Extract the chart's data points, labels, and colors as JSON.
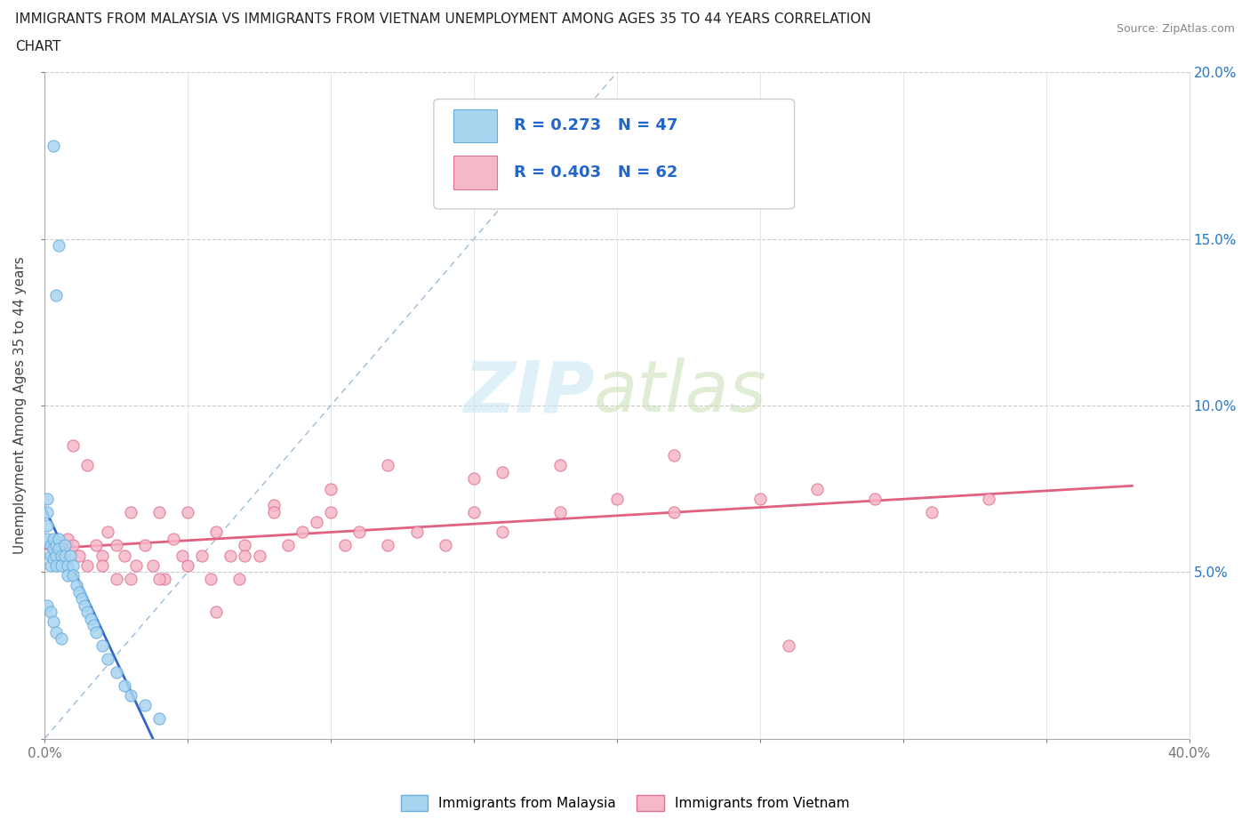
{
  "title_line1": "IMMIGRANTS FROM MALAYSIA VS IMMIGRANTS FROM VIETNAM UNEMPLOYMENT AMONG AGES 35 TO 44 YEARS CORRELATION",
  "title_line2": "CHART",
  "source": "Source: ZipAtlas.com",
  "ylabel": "Unemployment Among Ages 35 to 44 years",
  "x_min": 0.0,
  "x_max": 0.4,
  "y_min": 0.0,
  "y_max": 0.2,
  "malaysia_color": "#a8d4f0",
  "malaysia_edge": "#6aaee0",
  "vietnam_color": "#f5b8c8",
  "vietnam_edge": "#e07090",
  "malaysia_line_color": "#3366cc",
  "vietnam_line_color": "#e06080",
  "diag_color": "#99bbdd",
  "malaysia_R": 0.273,
  "malaysia_N": 47,
  "vietnam_R": 0.403,
  "vietnam_N": 62,
  "legend_label_malaysia": "Immigrants from Malaysia",
  "legend_label_vietnam": "Immigrants from Vietnam",
  "malaysia_x": [
    0.003,
    0.005,
    0.004,
    0.001,
    0.001,
    0.001,
    0.001,
    0.002,
    0.002,
    0.002,
    0.003,
    0.003,
    0.003,
    0.004,
    0.004,
    0.004,
    0.005,
    0.005,
    0.006,
    0.006,
    0.007,
    0.007,
    0.008,
    0.008,
    0.009,
    0.01,
    0.01,
    0.011,
    0.012,
    0.013,
    0.014,
    0.015,
    0.016,
    0.017,
    0.018,
    0.02,
    0.022,
    0.025,
    0.028,
    0.03,
    0.035,
    0.04,
    0.001,
    0.002,
    0.003,
    0.004,
    0.006
  ],
  "malaysia_y": [
    0.178,
    0.148,
    0.133,
    0.072,
    0.068,
    0.064,
    0.06,
    0.058,
    0.055,
    0.052,
    0.06,
    0.057,
    0.054,
    0.058,
    0.055,
    0.052,
    0.06,
    0.057,
    0.055,
    0.052,
    0.058,
    0.055,
    0.052,
    0.049,
    0.055,
    0.052,
    0.049,
    0.046,
    0.044,
    0.042,
    0.04,
    0.038,
    0.036,
    0.034,
    0.032,
    0.028,
    0.024,
    0.02,
    0.016,
    0.013,
    0.01,
    0.006,
    0.04,
    0.038,
    0.035,
    0.032,
    0.03
  ],
  "vietnam_x": [
    0.008,
    0.01,
    0.012,
    0.015,
    0.018,
    0.02,
    0.022,
    0.025,
    0.028,
    0.03,
    0.032,
    0.035,
    0.038,
    0.04,
    0.042,
    0.045,
    0.048,
    0.05,
    0.055,
    0.058,
    0.06,
    0.065,
    0.068,
    0.07,
    0.075,
    0.08,
    0.085,
    0.09,
    0.095,
    0.1,
    0.105,
    0.11,
    0.12,
    0.13,
    0.14,
    0.15,
    0.16,
    0.18,
    0.2,
    0.22,
    0.25,
    0.27,
    0.29,
    0.31,
    0.33,
    0.01,
    0.015,
    0.02,
    0.025,
    0.03,
    0.04,
    0.05,
    0.06,
    0.07,
    0.08,
    0.1,
    0.12,
    0.15,
    0.18,
    0.22,
    0.26,
    0.16
  ],
  "vietnam_y": [
    0.06,
    0.058,
    0.055,
    0.052,
    0.058,
    0.055,
    0.062,
    0.058,
    0.055,
    0.068,
    0.052,
    0.058,
    0.052,
    0.068,
    0.048,
    0.06,
    0.055,
    0.068,
    0.055,
    0.048,
    0.062,
    0.055,
    0.048,
    0.058,
    0.055,
    0.07,
    0.058,
    0.062,
    0.065,
    0.068,
    0.058,
    0.062,
    0.058,
    0.062,
    0.058,
    0.068,
    0.062,
    0.068,
    0.072,
    0.068,
    0.072,
    0.075,
    0.072,
    0.068,
    0.072,
    0.088,
    0.082,
    0.052,
    0.048,
    0.048,
    0.048,
    0.052,
    0.038,
    0.055,
    0.068,
    0.075,
    0.082,
    0.078,
    0.082,
    0.085,
    0.028,
    0.08
  ]
}
